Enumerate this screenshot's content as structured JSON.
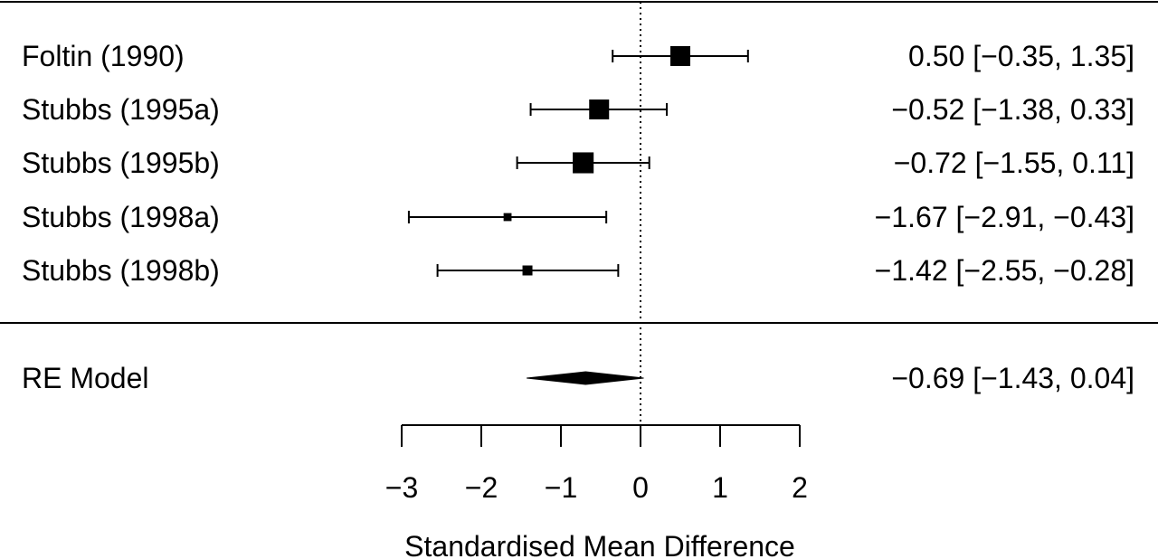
{
  "chart_data": {
    "type": "forest",
    "xlabel": "Standardised Mean Difference",
    "xlim": [
      -3,
      2
    ],
    "ticks": [
      -3,
      -2,
      -1,
      0,
      1,
      2
    ],
    "tick_labels": [
      "−3",
      "−2",
      "−1",
      "0",
      "1",
      "2"
    ],
    "reference_line": 0,
    "studies": [
      {
        "label": "Foltin (1990)",
        "estimate": 0.5,
        "ci_low": -0.35,
        "ci_high": 1.35,
        "weight": 1.0,
        "text": "0.50 [−0.35,  1.35]"
      },
      {
        "label": "Stubbs (1995a)",
        "estimate": -0.52,
        "ci_low": -1.38,
        "ci_high": 0.33,
        "weight": 1.0,
        "text": "−0.52 [−1.38,  0.33]"
      },
      {
        "label": "Stubbs (1995b)",
        "estimate": -0.72,
        "ci_low": -1.55,
        "ci_high": 0.11,
        "weight": 1.05,
        "text": "−0.72 [−1.55,  0.11]"
      },
      {
        "label": "Stubbs (1998a)",
        "estimate": -1.67,
        "ci_low": -2.91,
        "ci_high": -0.43,
        "weight": 0.4,
        "text": "−1.67 [−2.91, −0.43]"
      },
      {
        "label": "Stubbs (1998b)",
        "estimate": -1.42,
        "ci_low": -2.55,
        "ci_high": -0.28,
        "weight": 0.5,
        "text": "−1.42 [−2.55, −0.28]"
      }
    ],
    "summary": {
      "label": "RE Model",
      "estimate": -0.69,
      "ci_low": -1.43,
      "ci_high": 0.04,
      "text": "−0.69 [−1.43,  0.04]"
    }
  }
}
